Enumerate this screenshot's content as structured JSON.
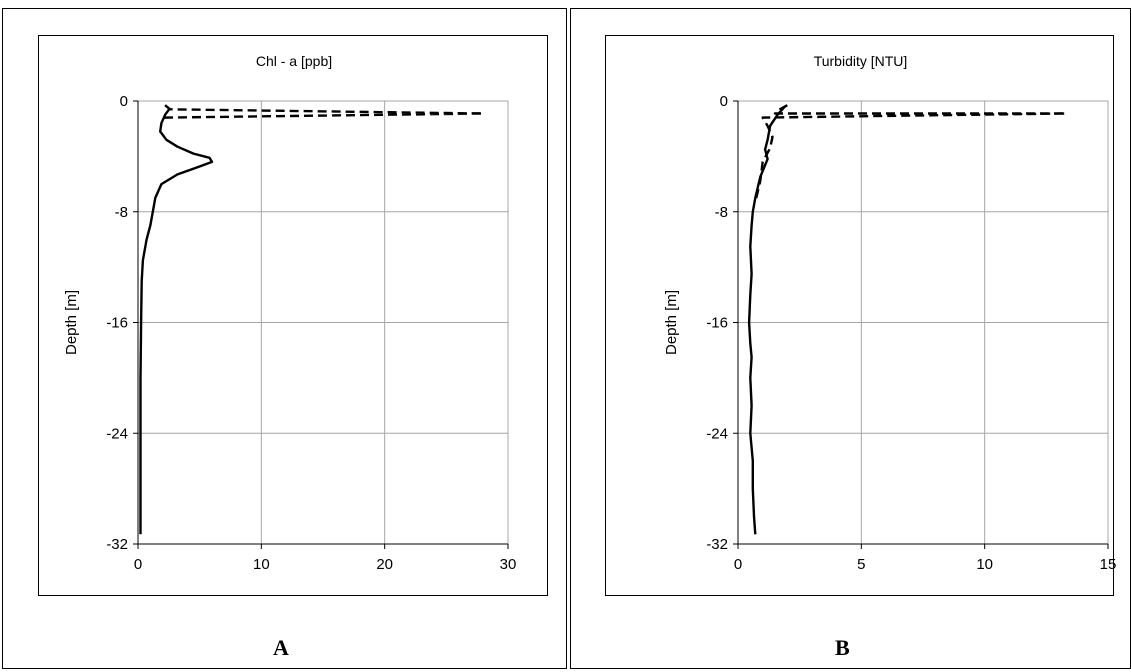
{
  "panels": [
    {
      "letter": "A"
    },
    {
      "letter": "B"
    }
  ],
  "chart_data": [
    {
      "type": "line",
      "title": "Chl - a [ppb]",
      "xlabel": "",
      "ylabel": "Depth  [m]",
      "xlim": [
        0,
        30
      ],
      "ylim": [
        -32,
        0
      ],
      "xticks": [
        0,
        10,
        20,
        30
      ],
      "yticks": [
        0,
        -8,
        -16,
        -24,
        -32
      ],
      "grid": true,
      "series": [
        {
          "style": "solid",
          "x": [
            2.6,
            2.2,
            1.9,
            1.8,
            2.3,
            3.2,
            4.5,
            5.8,
            6.0,
            4.8,
            3.2,
            1.9,
            1.4,
            1.2,
            1.0,
            0.7,
            0.4,
            0.3,
            0.25,
            0.2,
            0.2,
            0.2,
            0.2,
            0.2
          ],
          "y": [
            -0.5,
            -1.0,
            -1.6,
            -2.2,
            -2.8,
            -3.3,
            -3.8,
            -4.1,
            -4.4,
            -4.8,
            -5.3,
            -6.0,
            -7.0,
            -8.0,
            -9.0,
            -10.0,
            -11.5,
            -13.0,
            -16.0,
            -20.0,
            -24.0,
            -27.0,
            -30.0,
            -31.3
          ]
        },
        {
          "style": "dashed",
          "x": [
            2.2,
            2.6,
            28.0,
            2.2,
            1.9
          ],
          "y": [
            -0.3,
            -0.6,
            -0.9,
            -1.2,
            -1.5
          ]
        }
      ]
    },
    {
      "type": "line",
      "title": "Turbidity [NTU]",
      "xlabel": "",
      "ylabel": "Depth  [m]",
      "xlim": [
        0,
        15
      ],
      "ylim": [
        -32,
        0
      ],
      "xticks": [
        0,
        5,
        10,
        15
      ],
      "yticks": [
        0,
        -8,
        -16,
        -24,
        -32
      ],
      "grid": true,
      "series": [
        {
          "style": "solid",
          "x": [
            1.9,
            1.6,
            1.3,
            1.2,
            1.1,
            1.2,
            0.9,
            0.7,
            0.6,
            0.55,
            0.5,
            0.55,
            0.5,
            0.45,
            0.5,
            0.55,
            0.5,
            0.55,
            0.5,
            0.6,
            0.6,
            0.65,
            0.7
          ],
          "y": [
            -0.4,
            -1.0,
            -1.8,
            -2.8,
            -3.5,
            -4.2,
            -5.5,
            -7.0,
            -8.0,
            -9.0,
            -10.5,
            -12.5,
            -14.0,
            -16.0,
            -17.5,
            -18.5,
            -20.0,
            -22.0,
            -24.0,
            -26.0,
            -28.0,
            -30.0,
            -31.3
          ]
        },
        {
          "style": "dashed",
          "x": [
            2.0,
            1.6,
            1.5,
            13.3,
            1.0,
            1.2,
            1.4,
            1.3,
            1.0,
            0.9,
            0.7
          ],
          "y": [
            -0.3,
            -0.7,
            -0.9,
            -0.9,
            -1.2,
            -1.8,
            -2.6,
            -3.4,
            -4.4,
            -5.8,
            -7.3
          ]
        }
      ]
    }
  ]
}
